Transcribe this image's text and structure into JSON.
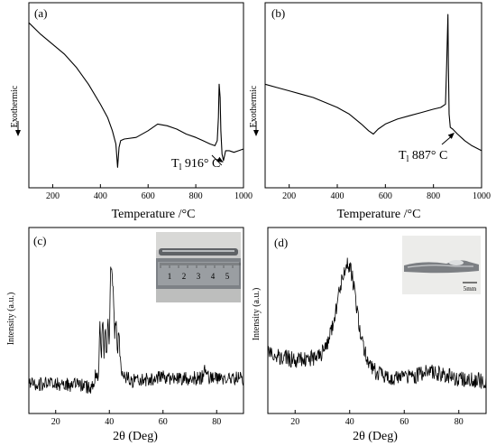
{
  "chart_data": [
    {
      "panel": "(a)",
      "type": "line",
      "xlabel": "Temperature /°C",
      "ylabel": "Exothermic",
      "xlim": [
        100,
        1000
      ],
      "ylim": [
        0,
        100
      ],
      "xticks": [
        200,
        400,
        600,
        800,
        1000
      ],
      "annotation": {
        "text": "T",
        "sub": "l",
        "rest": " 916° C",
        "x": 916
      },
      "series": [
        {
          "x": [
            100,
            150,
            200,
            250,
            300,
            350,
            400,
            430,
            450,
            465,
            472,
            478,
            485,
            500,
            550,
            600,
            640,
            680,
            720,
            760,
            800,
            830,
            860,
            880,
            890,
            895,
            898,
            902,
            905,
            910,
            916,
            925,
            940,
            960,
            980,
            1000
          ],
          "y": [
            95,
            88,
            82,
            76,
            68,
            58,
            46,
            38,
            30,
            22,
            8,
            20,
            24,
            25,
            26,
            30,
            34,
            33,
            31,
            28,
            26,
            24,
            22,
            21,
            24,
            38,
            58,
            50,
            30,
            16,
            12,
            18,
            18,
            17,
            18,
            19
          ]
        }
      ]
    },
    {
      "panel": "(b)",
      "type": "line",
      "xlabel": "Temperature /°C",
      "ylabel": "Exothermic",
      "xlim": [
        100,
        1000
      ],
      "ylim": [
        0,
        100
      ],
      "xticks": [
        200,
        400,
        600,
        800,
        1000
      ],
      "annotation": {
        "text": "T",
        "sub": "l",
        "rest": " 887°  C",
        "x": 887
      },
      "series": [
        {
          "x": [
            100,
            150,
            200,
            250,
            300,
            350,
            400,
            450,
            500,
            530,
            550,
            570,
            600,
            650,
            700,
            750,
            800,
            830,
            850,
            855,
            860,
            862,
            865,
            870,
            880,
            900,
            930,
            960,
            1000
          ],
          "y": [
            58,
            56,
            54,
            52,
            50,
            47,
            44,
            40,
            34,
            30,
            28,
            31,
            34,
            37,
            39,
            41,
            43,
            44,
            46,
            70,
            100,
            70,
            40,
            32,
            31,
            28,
            24,
            21,
            18
          ]
        }
      ]
    },
    {
      "panel": "(c)",
      "type": "line",
      "xlabel": "2θ (Deg)",
      "ylabel": "Intensity (a.u.)",
      "xlim": [
        10,
        90
      ],
      "ylim": [
        0,
        100
      ],
      "xticks": [
        20,
        40,
        60,
        80
      ],
      "inset": {
        "ruler_labels": [
          "1",
          "2",
          "3",
          "4",
          "5"
        ]
      },
      "series": [
        {
          "x": [
            10,
            20,
            30,
            34,
            35,
            36,
            36.5,
            37,
            37.5,
            38,
            38.5,
            39,
            39.5,
            40,
            40.5,
            41,
            41.5,
            42,
            42.5,
            43,
            43.5,
            44,
            45,
            46,
            48,
            50,
            55,
            60,
            65,
            70,
            75,
            76,
            77,
            80,
            85,
            90
          ],
          "y": [
            14,
            14,
            13,
            12,
            22,
            18,
            50,
            25,
            55,
            30,
            45,
            28,
            52,
            35,
            85,
            75,
            70,
            40,
            55,
            30,
            45,
            28,
            20,
            18,
            16,
            16,
            17,
            18,
            17,
            17,
            18,
            24,
            17,
            17,
            17,
            17
          ]
        }
      ]
    },
    {
      "panel": "(d)",
      "type": "line",
      "xlabel": "2θ (Deg)",
      "ylabel": "Intensity (a.u.)",
      "xlim": [
        10,
        90
      ],
      "ylim": [
        0,
        100
      ],
      "xticks": [
        20,
        40,
        60,
        80
      ],
      "inset": {
        "scale_bar": "5mm"
      },
      "series": [
        {
          "x": [
            10,
            15,
            20,
            25,
            30,
            32,
            34,
            36,
            37,
            38,
            39,
            40,
            41,
            42,
            43,
            44,
            46,
            48,
            50,
            55,
            60,
            65,
            70,
            75,
            80,
            85,
            90
          ],
          "y": [
            32,
            30,
            28,
            28,
            32,
            38,
            50,
            66,
            74,
            80,
            84,
            82,
            76,
            66,
            54,
            42,
            30,
            24,
            20,
            18,
            18,
            19,
            22,
            19,
            17,
            16,
            16
          ]
        }
      ]
    }
  ]
}
